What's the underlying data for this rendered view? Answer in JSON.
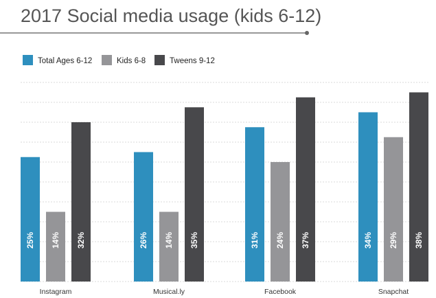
{
  "chart_data": {
    "type": "bar",
    "title": "2017 Social media usage (kids 6-12)",
    "categories": [
      "Instagram",
      "Musical.ly",
      "Facebook",
      "Snapchat"
    ],
    "series": [
      {
        "name": "Total Ages 6-12",
        "color": "#2e8fbe",
        "values": [
          25,
          26,
          31,
          34
        ]
      },
      {
        "name": "Kids 6-8",
        "color": "#959598",
        "values": [
          14,
          14,
          24,
          29
        ]
      },
      {
        "name": "Tweens 9-12",
        "color": "#48484b",
        "values": [
          32,
          35,
          37,
          38
        ]
      }
    ],
    "value_suffix": "%",
    "ylim": [
      0,
      40
    ],
    "grid": true,
    "legend": "top-left",
    "colors": {
      "title": "#555555",
      "grid": "#d9d9d9",
      "label_text": "#ffffff",
      "category_text": "#333333"
    }
  }
}
